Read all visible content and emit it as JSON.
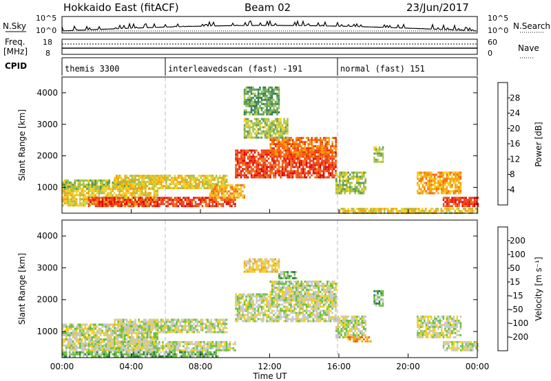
{
  "header": {
    "station": "Hokkaido East (fitACF)",
    "beam": "Beam 02",
    "date": "23/Jun/2017"
  },
  "noise_panel": {
    "left_label": "N.Sky",
    "right_label": "N.Search",
    "left_ticks": [
      "10^5",
      "10^0"
    ],
    "right_ticks": [
      "10^5",
      "10^0"
    ]
  },
  "freq_panel": {
    "left_label_1": "Freq.",
    "left_label_2": "[MHz]",
    "right_label": "Nave",
    "left_ticks": [
      "18",
      "8"
    ],
    "right_ticks": [
      "60",
      "0"
    ]
  },
  "cpid_panel": {
    "label": "CPID",
    "modes": [
      {
        "name": "themis 3300",
        "start_hour": 0
      },
      {
        "name": "interleavedscan (fast) -191",
        "start_hour": 6
      },
      {
        "name": "normal (fast) 151",
        "start_hour": 16
      }
    ]
  },
  "axes": {
    "ylabel": "Slant Range [km]",
    "xlabel": "Time UT",
    "y_ticks": [
      1000,
      2000,
      3000,
      4000
    ],
    "x_ticks": [
      "00:00",
      "04:00",
      "08:00",
      "12:00",
      "16:00",
      "20:00",
      "00:00"
    ]
  },
  "power_colorbar": {
    "label": "Power [dB]",
    "ticks": [
      "28",
      "24",
      "20",
      "16",
      "12",
      "8",
      "4"
    ],
    "colors": [
      "#0000ff",
      "#1e3c96",
      "#2e7a4a",
      "#5a9c5a",
      "#a4c24a",
      "#f0d020",
      "#f8a010",
      "#f56a10",
      "#ee3a10",
      "#e00000"
    ]
  },
  "velocity_colorbar": {
    "label": "Velocity [m s⁻¹]",
    "ticks": [
      "200",
      "100",
      "50",
      "15",
      "-15",
      "-50",
      "-100",
      "-200"
    ],
    "colors": [
      "#1a1aa0",
      "#3050b0",
      "#2e7a4a",
      "#6cc040",
      "#c8c8c8",
      "#f0d020",
      "#f5a010",
      "#f06010",
      "#e02010"
    ]
  },
  "chart_data": {
    "type": "heatmap",
    "x_unit": "hours UT",
    "xlim": [
      0,
      24
    ],
    "ylim": [
      180,
      4500
    ],
    "mode_boundaries_hours": [
      6,
      16
    ],
    "power_regions": [
      {
        "t0": 0.0,
        "t1": 5.5,
        "r0": 420,
        "r1": 980,
        "level": 5
      },
      {
        "t0": 0.0,
        "t1": 4.8,
        "r0": 980,
        "r1": 1250,
        "level": 4
      },
      {
        "t0": 1.5,
        "t1": 10.0,
        "r0": 400,
        "r1": 700,
        "level": 8
      },
      {
        "t0": 3.0,
        "t1": 9.5,
        "r0": 1000,
        "r1": 1400,
        "level": 5
      },
      {
        "t0": 8.5,
        "t1": 10.5,
        "r0": 700,
        "r1": 1100,
        "level": 6
      },
      {
        "t0": 10.0,
        "t1": 15.8,
        "r0": 1300,
        "r1": 2200,
        "level": 8
      },
      {
        "t0": 12.0,
        "t1": 15.8,
        "r0": 2000,
        "r1": 2600,
        "level": 7
      },
      {
        "t0": 10.5,
        "t1": 13.0,
        "r0": 2600,
        "r1": 3200,
        "level": 4
      },
      {
        "t0": 10.5,
        "t1": 12.5,
        "r0": 3300,
        "r1": 4200,
        "level": 3
      },
      {
        "t0": 15.8,
        "t1": 17.5,
        "r0": 800,
        "r1": 1500,
        "level": 4
      },
      {
        "t0": 18.0,
        "t1": 18.5,
        "r0": 1800,
        "r1": 2300,
        "level": 4
      },
      {
        "t0": 20.5,
        "t1": 23.0,
        "r0": 800,
        "r1": 1500,
        "level": 6
      },
      {
        "t0": 22.0,
        "t1": 24.0,
        "r0": 400,
        "r1": 700,
        "level": 8
      },
      {
        "t0": 16.0,
        "t1": 24.0,
        "r0": 200,
        "r1": 350,
        "level": 5
      }
    ],
    "velocity_regions": [
      {
        "t0": 0.0,
        "t1": 5.5,
        "r0": 420,
        "r1": 980,
        "level": 4
      },
      {
        "t0": 0.0,
        "t1": 4.8,
        "r0": 980,
        "r1": 1250,
        "level": 4
      },
      {
        "t0": 1.5,
        "t1": 10.0,
        "r0": 400,
        "r1": 700,
        "level": 4
      },
      {
        "t0": 3.0,
        "t1": 9.5,
        "r0": 1000,
        "r1": 1400,
        "level": 4
      },
      {
        "t0": 10.0,
        "t1": 15.8,
        "r0": 1300,
        "r1": 2200,
        "level": 4
      },
      {
        "t0": 12.0,
        "t1": 15.8,
        "r0": 2000,
        "r1": 2600,
        "level": 4
      },
      {
        "t0": 12.5,
        "t1": 13.5,
        "r0": 2650,
        "r1": 2900,
        "level": 3
      },
      {
        "t0": 10.5,
        "t1": 12.5,
        "r0": 2900,
        "r1": 3300,
        "level": 5
      },
      {
        "t0": 15.8,
        "t1": 17.5,
        "r0": 800,
        "r1": 1500,
        "level": 4
      },
      {
        "t0": 16.5,
        "t1": 17.8,
        "r0": 700,
        "r1": 850,
        "level": 6
      },
      {
        "t0": 18.0,
        "t1": 18.5,
        "r0": 1800,
        "r1": 2300,
        "level": 3
      },
      {
        "t0": 20.5,
        "t1": 23.0,
        "r0": 800,
        "r1": 1500,
        "level": 4
      },
      {
        "t0": 22.0,
        "t1": 24.0,
        "r0": 400,
        "r1": 700,
        "level": 4
      },
      {
        "t0": 0.0,
        "t1": 9.0,
        "r0": 200,
        "r1": 380,
        "level": 3
      }
    ]
  }
}
